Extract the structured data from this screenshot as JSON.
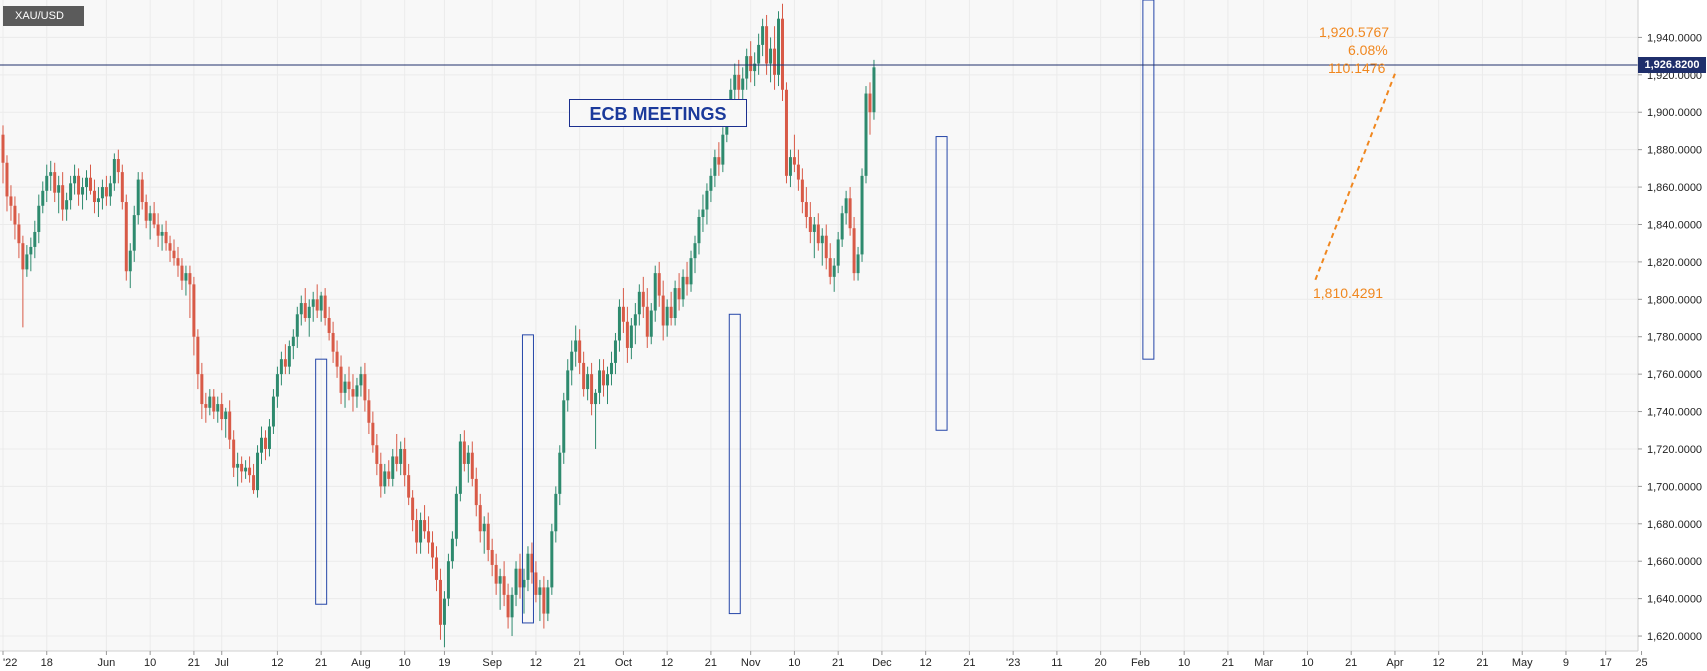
{
  "symbol": "XAU/USD",
  "ecb_label": "ECB MEETINGS",
  "current_price": "1,926.8200",
  "annotations": {
    "top_price": "1,920.5767",
    "percent": "6.08%",
    "change": "110.1476",
    "low_price": "1,810.4291"
  },
  "colors": {
    "up": "#2e8a6e",
    "down": "#d85a47",
    "ecb_box": "#2546a8",
    "trend": "#f0871f",
    "price_line": "#1f2f6b",
    "grid": "#ebebeb"
  },
  "chart_data": {
    "type": "candlestick",
    "y_axis": {
      "range": [
        1612,
        1960
      ],
      "ticks": [
        "1,620.0000",
        "1,640.0000",
        "1,660.0000",
        "1,680.0000",
        "1,700.0000",
        "1,720.0000",
        "1,740.0000",
        "1,760.0000",
        "1,780.0000",
        "1,800.0000",
        "1,820.0000",
        "1,840.0000",
        "1,860.0000",
        "1,880.0000",
        "1,900.0000",
        "1,920.0000",
        "1,940.0000"
      ],
      "tick_values": [
        1620,
        1640,
        1660,
        1680,
        1700,
        1720,
        1740,
        1760,
        1780,
        1800,
        1820,
        1840,
        1860,
        1880,
        1900,
        1920,
        1940
      ]
    },
    "x_axis": {
      "labels": [
        "'22",
        "18",
        "Jun",
        "10",
        "21",
        "Jul",
        "12",
        "21",
        "Aug",
        "10",
        "19",
        "Sep",
        "12",
        "21",
        "Oct",
        "12",
        "21",
        "Nov",
        "10",
        "21",
        "Dec",
        "12",
        "21",
        "'23",
        "11",
        "20",
        "Feb",
        "10",
        "21",
        "Mar",
        "10",
        "21",
        "Apr",
        "12",
        "21",
        "May",
        "9",
        "17",
        "25"
      ],
      "label_bar_index": [
        0,
        11,
        26,
        37,
        48,
        55,
        69,
        80,
        90,
        101,
        111,
        123,
        134,
        145,
        156,
        167,
        178,
        188,
        199,
        210,
        221,
        232,
        243,
        254,
        265,
        276,
        286,
        297,
        308,
        317,
        328,
        339,
        350,
        361,
        372,
        382,
        393,
        403,
        412
      ]
    },
    "price_line": 1926.82,
    "ecb_meetings": [
      {
        "bar": 80,
        "low": 1637,
        "high": 1768
      },
      {
        "bar": 132,
        "low": 1627,
        "high": 1781
      },
      {
        "bar": 184,
        "low": 1632,
        "high": 1792
      },
      {
        "bar": 236,
        "low": 1730,
        "high": 1887
      },
      {
        "bar": 288,
        "low": 1768,
        "high": 1960
      }
    ],
    "trendline": {
      "from": {
        "bar": 330,
        "value": 1810.4291
      },
      "to": {
        "bar": 350,
        "value": 1920.5767
      }
    },
    "ohlc": [
      [
        1888,
        1893,
        1862,
        1873
      ],
      [
        1873,
        1877,
        1847,
        1855
      ],
      [
        1855,
        1861,
        1842,
        1850
      ],
      [
        1850,
        1855,
        1832,
        1840
      ],
      [
        1840,
        1846,
        1822,
        1830
      ],
      [
        1830,
        1834,
        1785,
        1816
      ],
      [
        1816,
        1829,
        1812,
        1824
      ],
      [
        1824,
        1833,
        1815,
        1828
      ],
      [
        1828,
        1842,
        1822,
        1836
      ],
      [
        1836,
        1856,
        1830,
        1850
      ],
      [
        1850,
        1863,
        1846,
        1858
      ],
      [
        1858,
        1872,
        1852,
        1866
      ],
      [
        1866,
        1874,
        1858,
        1868
      ],
      [
        1868,
        1873,
        1852,
        1857
      ],
      [
        1857,
        1866,
        1846,
        1861
      ],
      [
        1861,
        1868,
        1842,
        1848
      ],
      [
        1848,
        1857,
        1842,
        1853
      ],
      [
        1853,
        1866,
        1848,
        1862
      ],
      [
        1862,
        1872,
        1856,
        1866
      ],
      [
        1866,
        1870,
        1850,
        1856
      ],
      [
        1856,
        1865,
        1848,
        1860
      ],
      [
        1860,
        1869,
        1853,
        1865
      ],
      [
        1865,
        1872,
        1856,
        1858
      ],
      [
        1858,
        1864,
        1846,
        1852
      ],
      [
        1852,
        1860,
        1844,
        1854
      ],
      [
        1854,
        1864,
        1848,
        1860
      ],
      [
        1860,
        1866,
        1850,
        1855
      ],
      [
        1855,
        1866,
        1850,
        1862
      ],
      [
        1862,
        1878,
        1858,
        1875
      ],
      [
        1875,
        1880,
        1862,
        1868
      ],
      [
        1868,
        1872,
        1848,
        1852
      ],
      [
        1852,
        1856,
        1810,
        1815
      ],
      [
        1815,
        1830,
        1806,
        1826
      ],
      [
        1826,
        1850,
        1820,
        1845
      ],
      [
        1845,
        1868,
        1840,
        1864
      ],
      [
        1864,
        1868,
        1848,
        1852
      ],
      [
        1852,
        1856,
        1838,
        1842
      ],
      [
        1842,
        1850,
        1832,
        1846
      ],
      [
        1846,
        1852,
        1838,
        1840
      ],
      [
        1840,
        1846,
        1828,
        1834
      ],
      [
        1834,
        1840,
        1826,
        1836
      ],
      [
        1836,
        1842,
        1826,
        1830
      ],
      [
        1830,
        1834,
        1820,
        1826
      ],
      [
        1826,
        1832,
        1818,
        1822
      ],
      [
        1822,
        1828,
        1812,
        1818
      ],
      [
        1818,
        1822,
        1805,
        1810
      ],
      [
        1810,
        1818,
        1802,
        1814
      ],
      [
        1814,
        1818,
        1790,
        1808
      ],
      [
        1808,
        1812,
        1770,
        1780
      ],
      [
        1780,
        1784,
        1752,
        1760
      ],
      [
        1760,
        1766,
        1736,
        1744
      ],
      [
        1744,
        1750,
        1734,
        1742
      ],
      [
        1742,
        1752,
        1738,
        1748
      ],
      [
        1748,
        1752,
        1736,
        1740
      ],
      [
        1740,
        1748,
        1734,
        1744
      ],
      [
        1744,
        1750,
        1730,
        1736
      ],
      [
        1736,
        1742,
        1726,
        1740
      ],
      [
        1740,
        1746,
        1720,
        1725
      ],
      [
        1725,
        1730,
        1705,
        1710
      ],
      [
        1710,
        1718,
        1700,
        1712
      ],
      [
        1712,
        1716,
        1702,
        1708
      ],
      [
        1708,
        1714,
        1704,
        1710
      ],
      [
        1710,
        1716,
        1702,
        1706
      ],
      [
        1706,
        1712,
        1696,
        1698
      ],
      [
        1698,
        1722,
        1694,
        1718
      ],
      [
        1718,
        1732,
        1712,
        1726
      ],
      [
        1726,
        1730,
        1714,
        1720
      ],
      [
        1720,
        1736,
        1716,
        1732
      ],
      [
        1732,
        1752,
        1728,
        1748
      ],
      [
        1748,
        1764,
        1742,
        1760
      ],
      [
        1760,
        1772,
        1754,
        1768
      ],
      [
        1768,
        1776,
        1760,
        1764
      ],
      [
        1764,
        1778,
        1760,
        1775
      ],
      [
        1775,
        1784,
        1768,
        1780
      ],
      [
        1780,
        1796,
        1774,
        1792
      ],
      [
        1792,
        1802,
        1786,
        1798
      ],
      [
        1798,
        1806,
        1788,
        1790
      ],
      [
        1790,
        1800,
        1780,
        1796
      ],
      [
        1796,
        1804,
        1788,
        1800
      ],
      [
        1800,
        1808,
        1790,
        1794
      ],
      [
        1794,
        1804,
        1788,
        1802
      ],
      [
        1802,
        1806,
        1786,
        1790
      ],
      [
        1790,
        1796,
        1778,
        1782
      ],
      [
        1782,
        1788,
        1766,
        1772
      ],
      [
        1772,
        1778,
        1758,
        1764
      ],
      [
        1764,
        1770,
        1744,
        1750
      ],
      [
        1750,
        1760,
        1742,
        1756
      ],
      [
        1756,
        1764,
        1746,
        1752
      ],
      [
        1752,
        1760,
        1740,
        1748
      ],
      [
        1748,
        1758,
        1742,
        1754
      ],
      [
        1754,
        1764,
        1748,
        1760
      ],
      [
        1760,
        1766,
        1740,
        1746
      ],
      [
        1746,
        1752,
        1728,
        1734
      ],
      [
        1734,
        1740,
        1718,
        1722
      ],
      [
        1722,
        1728,
        1706,
        1712
      ],
      [
        1712,
        1718,
        1694,
        1700
      ],
      [
        1700,
        1712,
        1696,
        1708
      ],
      [
        1708,
        1714,
        1700,
        1704
      ],
      [
        1704,
        1720,
        1700,
        1716
      ],
      [
        1716,
        1728,
        1708,
        1712
      ],
      [
        1712,
        1724,
        1706,
        1720
      ],
      [
        1720,
        1726,
        1700,
        1706
      ],
      [
        1706,
        1712,
        1690,
        1694
      ],
      [
        1694,
        1698,
        1676,
        1682
      ],
      [
        1682,
        1688,
        1664,
        1670
      ],
      [
        1670,
        1686,
        1664,
        1682
      ],
      [
        1682,
        1690,
        1672,
        1676
      ],
      [
        1676,
        1684,
        1664,
        1670
      ],
      [
        1670,
        1676,
        1656,
        1662
      ],
      [
        1662,
        1668,
        1644,
        1650
      ],
      [
        1650,
        1656,
        1618,
        1626
      ],
      [
        1626,
        1644,
        1614,
        1640
      ],
      [
        1640,
        1664,
        1636,
        1660
      ],
      [
        1660,
        1676,
        1656,
        1672
      ],
      [
        1672,
        1700,
        1668,
        1696
      ],
      [
        1696,
        1728,
        1692,
        1724
      ],
      [
        1724,
        1730,
        1708,
        1712
      ],
      [
        1712,
        1722,
        1702,
        1718
      ],
      [
        1718,
        1724,
        1700,
        1704
      ],
      [
        1704,
        1710,
        1684,
        1690
      ],
      [
        1690,
        1696,
        1670,
        1676
      ],
      [
        1676,
        1684,
        1664,
        1680
      ],
      [
        1680,
        1686,
        1660,
        1666
      ],
      [
        1666,
        1672,
        1652,
        1658
      ],
      [
        1658,
        1664,
        1642,
        1648
      ],
      [
        1648,
        1656,
        1634,
        1652
      ],
      [
        1652,
        1660,
        1636,
        1642
      ],
      [
        1642,
        1648,
        1624,
        1630
      ],
      [
        1630,
        1646,
        1620,
        1642
      ],
      [
        1642,
        1660,
        1636,
        1656
      ],
      [
        1656,
        1664,
        1640,
        1646
      ],
      [
        1646,
        1656,
        1632,
        1650
      ],
      [
        1650,
        1668,
        1644,
        1664
      ],
      [
        1664,
        1670,
        1648,
        1654
      ],
      [
        1654,
        1660,
        1638,
        1642
      ],
      [
        1642,
        1650,
        1628,
        1646
      ],
      [
        1646,
        1652,
        1624,
        1632
      ],
      [
        1632,
        1650,
        1628,
        1646
      ],
      [
        1646,
        1680,
        1642,
        1676
      ],
      [
        1676,
        1700,
        1670,
        1696
      ],
      [
        1696,
        1722,
        1690,
        1718
      ],
      [
        1718,
        1750,
        1712,
        1746
      ],
      [
        1746,
        1768,
        1740,
        1762
      ],
      [
        1762,
        1778,
        1754,
        1772
      ],
      [
        1772,
        1786,
        1764,
        1778
      ],
      [
        1778,
        1784,
        1760,
        1766
      ],
      [
        1766,
        1772,
        1748,
        1752
      ],
      [
        1752,
        1764,
        1746,
        1760
      ],
      [
        1760,
        1766,
        1738,
        1744
      ],
      [
        1744,
        1752,
        1720,
        1750
      ],
      [
        1750,
        1768,
        1744,
        1762
      ],
      [
        1762,
        1768,
        1748,
        1754
      ],
      [
        1754,
        1764,
        1744,
        1760
      ],
      [
        1760,
        1772,
        1754,
        1766
      ],
      [
        1766,
        1782,
        1760,
        1778
      ],
      [
        1778,
        1800,
        1772,
        1796
      ],
      [
        1796,
        1806,
        1782,
        1788
      ],
      [
        1788,
        1796,
        1766,
        1774
      ],
      [
        1774,
        1790,
        1768,
        1786
      ],
      [
        1786,
        1798,
        1776,
        1792
      ],
      [
        1792,
        1808,
        1786,
        1804
      ],
      [
        1804,
        1812,
        1790,
        1796
      ],
      [
        1796,
        1806,
        1774,
        1780
      ],
      [
        1780,
        1798,
        1776,
        1794
      ],
      [
        1794,
        1818,
        1788,
        1814
      ],
      [
        1814,
        1820,
        1796,
        1802
      ],
      [
        1802,
        1810,
        1778,
        1786
      ],
      [
        1786,
        1800,
        1780,
        1796
      ],
      [
        1796,
        1804,
        1786,
        1790
      ],
      [
        1790,
        1810,
        1786,
        1806
      ],
      [
        1806,
        1814,
        1794,
        1800
      ],
      [
        1800,
        1816,
        1796,
        1812
      ],
      [
        1812,
        1820,
        1802,
        1808
      ],
      [
        1808,
        1826,
        1804,
        1822
      ],
      [
        1822,
        1834,
        1814,
        1830
      ],
      [
        1830,
        1848,
        1824,
        1844
      ],
      [
        1844,
        1856,
        1836,
        1848
      ],
      [
        1848,
        1862,
        1840,
        1858
      ],
      [
        1858,
        1870,
        1852,
        1866
      ],
      [
        1866,
        1880,
        1860,
        1876
      ],
      [
        1876,
        1884,
        1866,
        1872
      ],
      [
        1872,
        1892,
        1868,
        1888
      ],
      [
        1888,
        1906,
        1884,
        1902
      ],
      [
        1902,
        1918,
        1896,
        1912
      ],
      [
        1912,
        1926,
        1904,
        1920
      ],
      [
        1920,
        1928,
        1906,
        1912
      ],
      [
        1912,
        1924,
        1904,
        1918
      ],
      [
        1918,
        1934,
        1912,
        1930
      ],
      [
        1930,
        1938,
        1916,
        1922
      ],
      [
        1922,
        1932,
        1914,
        1926
      ],
      [
        1926,
        1942,
        1920,
        1936
      ],
      [
        1936,
        1950,
        1930,
        1946
      ],
      [
        1946,
        1952,
        1920,
        1926
      ],
      [
        1926,
        1940,
        1916,
        1934
      ],
      [
        1934,
        1946,
        1912,
        1920
      ],
      [
        1920,
        1954,
        1914,
        1950
      ],
      [
        1950,
        1958,
        1906,
        1912
      ],
      [
        1912,
        1916,
        1862,
        1866
      ],
      [
        1866,
        1880,
        1860,
        1876
      ],
      [
        1876,
        1888,
        1868,
        1872
      ],
      [
        1872,
        1880,
        1858,
        1864
      ],
      [
        1864,
        1870,
        1846,
        1852
      ],
      [
        1852,
        1860,
        1838,
        1844
      ],
      [
        1844,
        1852,
        1830,
        1836
      ],
      [
        1836,
        1844,
        1822,
        1840
      ],
      [
        1840,
        1846,
        1826,
        1830
      ],
      [
        1830,
        1838,
        1818,
        1834
      ],
      [
        1834,
        1840,
        1816,
        1822
      ],
      [
        1822,
        1830,
        1808,
        1812
      ],
      [
        1812,
        1822,
        1804,
        1818
      ],
      [
        1818,
        1836,
        1814,
        1832
      ],
      [
        1832,
        1850,
        1828,
        1846
      ],
      [
        1846,
        1858,
        1840,
        1854
      ],
      [
        1854,
        1860,
        1834,
        1838
      ],
      [
        1838,
        1844,
        1810,
        1814
      ],
      [
        1814,
        1828,
        1810,
        1824
      ],
      [
        1824,
        1870,
        1820,
        1866
      ],
      [
        1866,
        1914,
        1862,
        1910
      ],
      [
        1910,
        1916,
        1888,
        1900
      ],
      [
        1900,
        1928,
        1896,
        1924
      ]
    ]
  }
}
